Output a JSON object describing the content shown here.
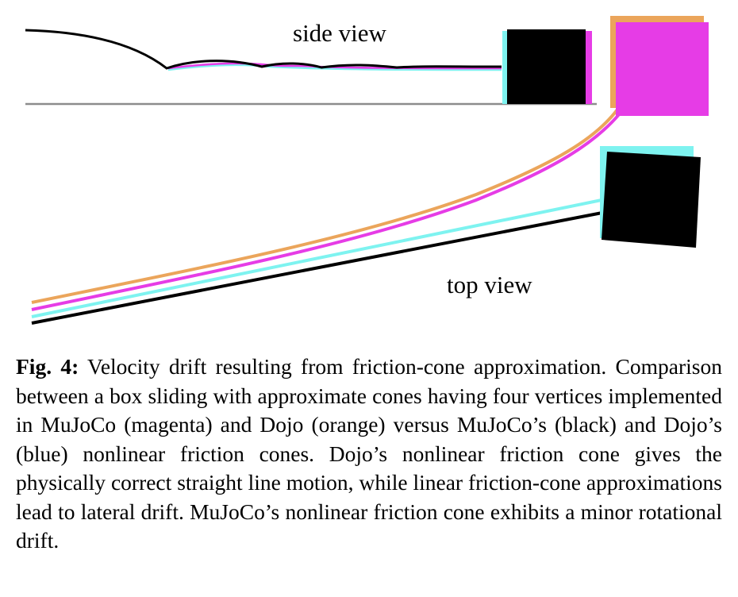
{
  "figure": {
    "side_view_label": "side view",
    "top_view_label": "top view",
    "colors": {
      "mujoco_nonlinear": "#000000",
      "dojo_nonlinear": "#7ef3f0",
      "mujoco_linear": "#e63ce6",
      "dojo_linear": "#eba55b",
      "ground": "#8c8c8c"
    }
  },
  "caption": {
    "label": "Fig. 4:",
    "text": " Velocity drift resulting from friction-cone approximation. Comparison between a box sliding with approximate cones having four vertices implemented in MuJoCo (magenta) and Dojo (orange) versus MuJoCo’s (black) and Dojo’s (blue) nonlinear friction cones. Dojo’s nonlinear friction cone gives the physically correct straight line motion, while linear friction-cone approximations lead to lateral drift. MuJoCo’s nonlinear friction cone exhibits a minor rotational drift."
  }
}
